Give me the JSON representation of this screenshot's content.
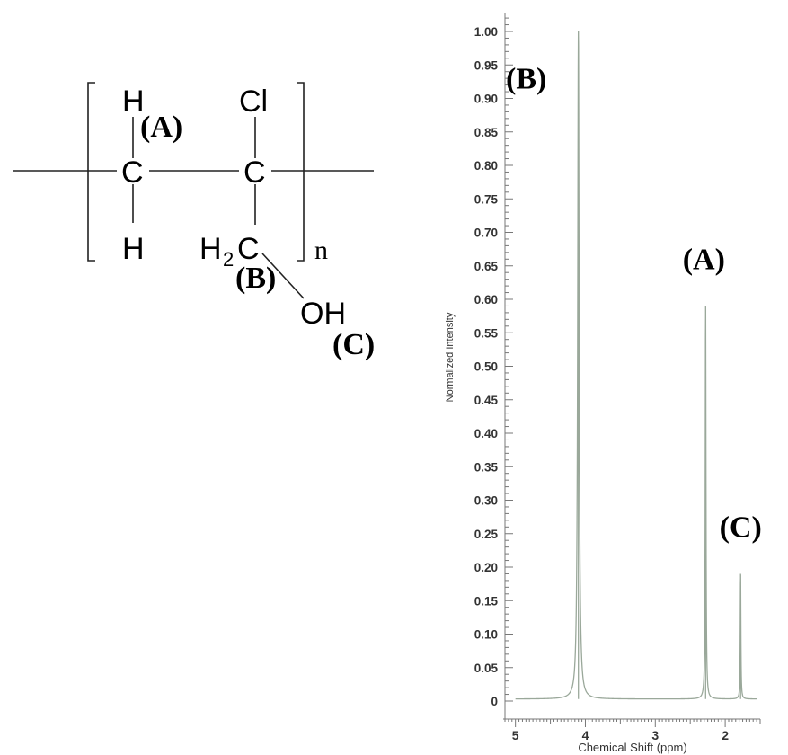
{
  "structure": {
    "atoms": {
      "h_top": "H",
      "h_bottom": "H",
      "c_left": "C",
      "c_right": "C",
      "cl": "Cl",
      "h2": "H",
      "h2_sub": "2",
      "c_ch2": "C",
      "oh": "OH",
      "n": "n"
    },
    "tags": {
      "a": "(A)",
      "b": "(B)",
      "c": "(C)"
    }
  },
  "chart_data": {
    "type": "line",
    "xlabel": "Chemical Shift (ppm)",
    "ylabel": "Normalized Intensity",
    "xlim": [
      5.15,
      1.5
    ],
    "ylim": [
      0,
      1.0
    ],
    "x_ticks": [
      5,
      4,
      3,
      2
    ],
    "y_ticks": [
      "0",
      "0.05",
      "0.10",
      "0.15",
      "0.20",
      "0.25",
      "0.30",
      "0.35",
      "0.40",
      "0.45",
      "0.50",
      "0.55",
      "0.60",
      "0.65",
      "0.70",
      "0.75",
      "0.80",
      "0.85",
      "0.90",
      "0.95",
      "1.00"
    ],
    "baseline": 0.003,
    "peaks": [
      {
        "label": "(B)",
        "shift": 4.1,
        "intensity": 1.0
      },
      {
        "label": "(A)",
        "shift": 2.28,
        "intensity": 0.59
      },
      {
        "label": "(C)",
        "shift": 1.78,
        "intensity": 0.19
      }
    ],
    "grid": false,
    "line_color": "#9aa89a"
  }
}
